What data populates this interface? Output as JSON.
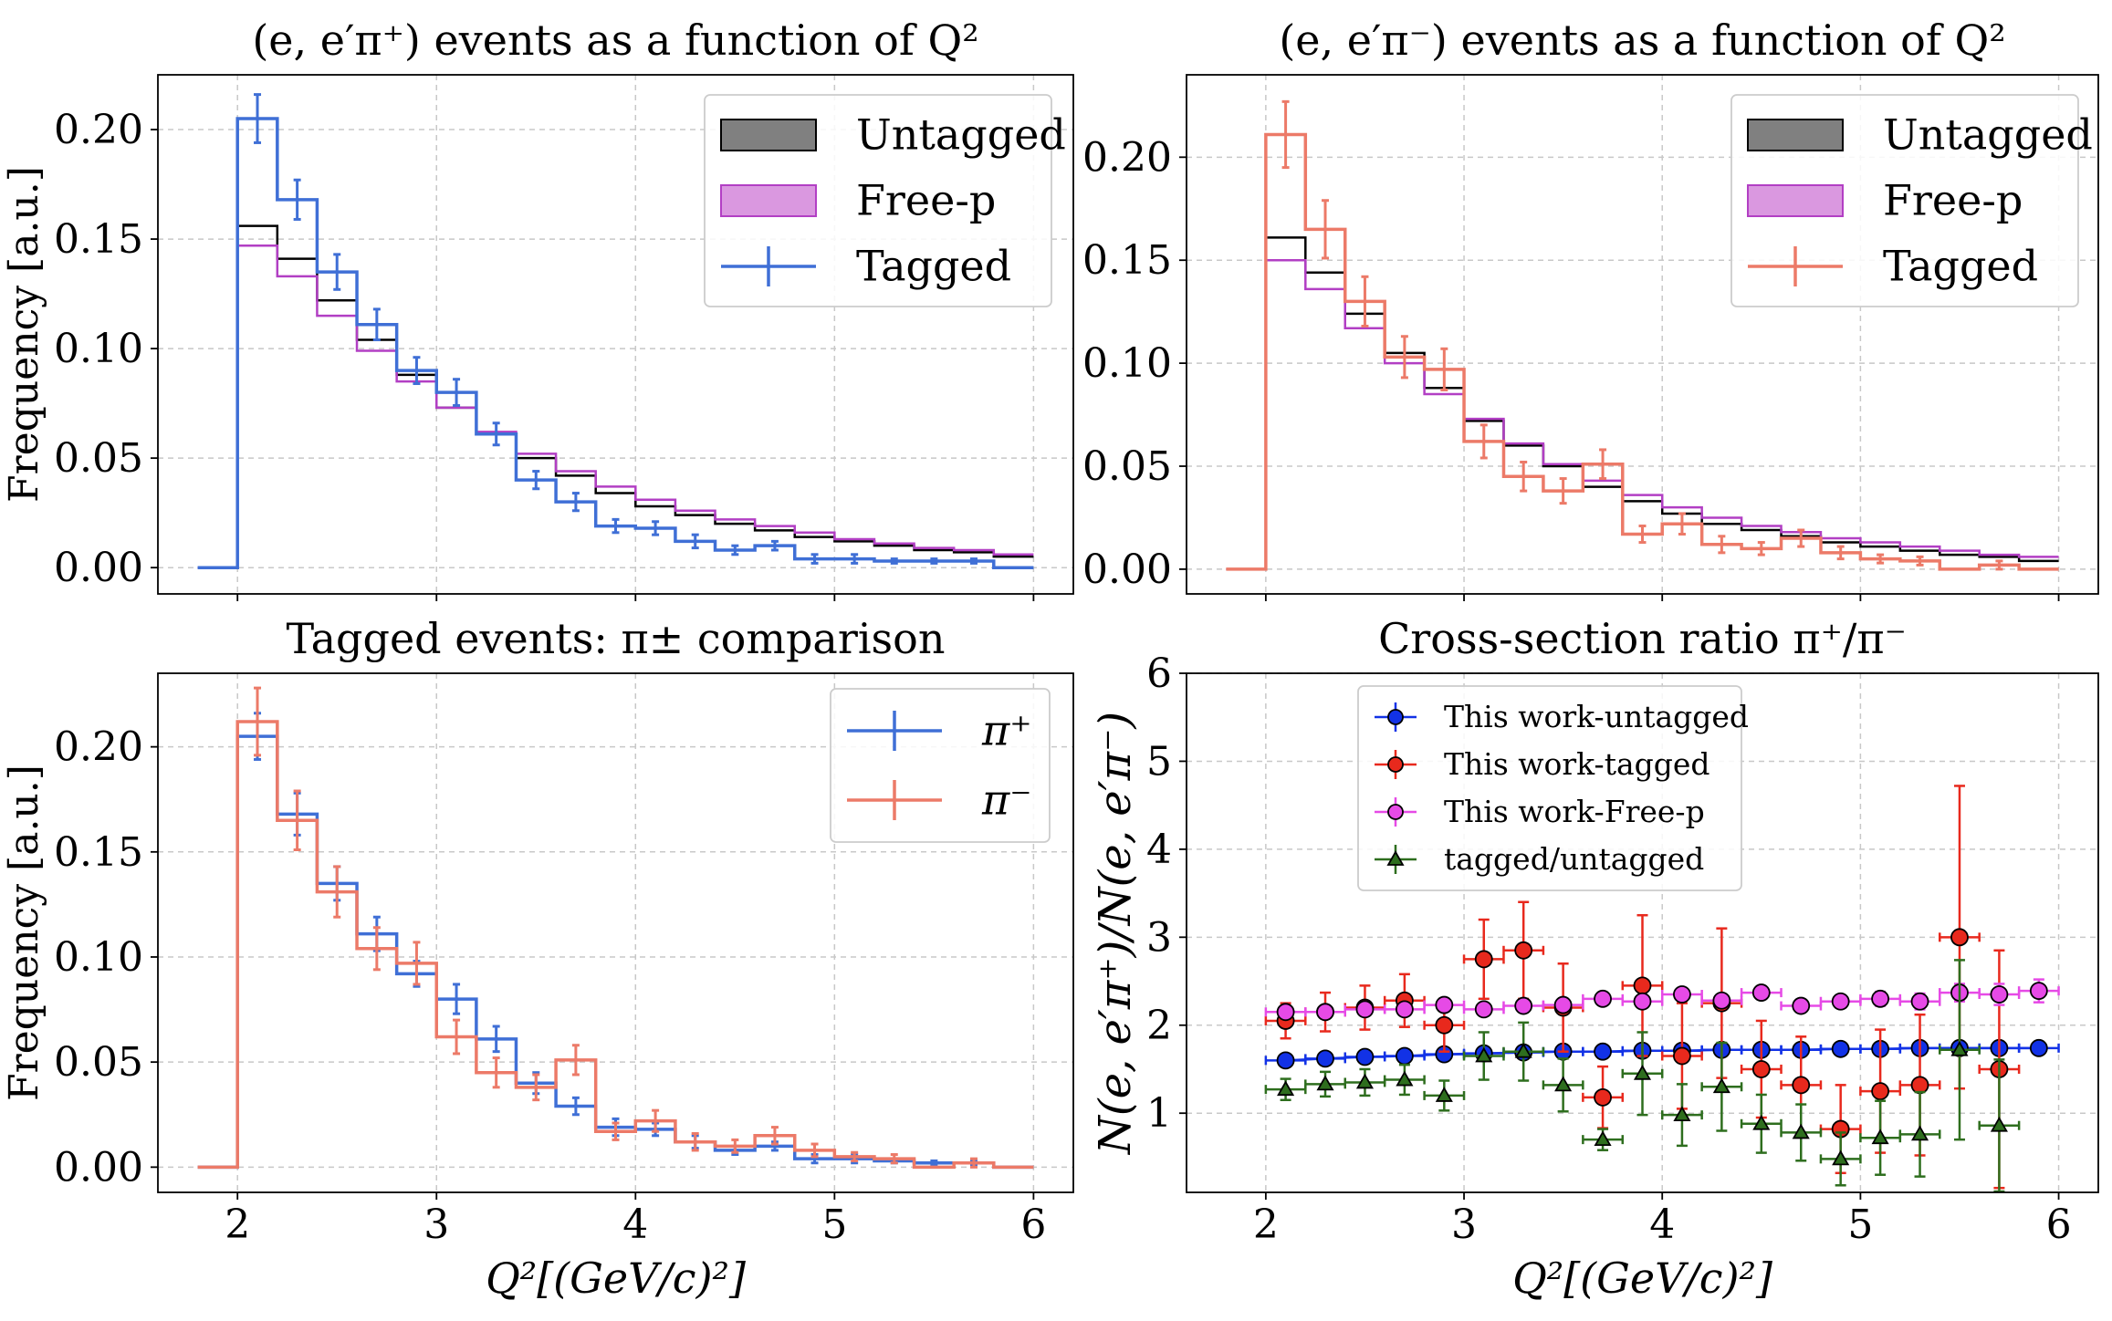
{
  "colors": {
    "untagged_fill": "#808080",
    "untagged_line": "#000000",
    "freep_fill": "#da98e0",
    "freep_line": "#b23fc4",
    "piplus": "#3f6fd6",
    "piminus": "#ec7a68",
    "untagged_marker": "#1232e6",
    "tagged_marker": "#e8291d",
    "freep_marker": "#e64ae6",
    "ratio_marker": "#2e6e1e",
    "grid": "#c8c8c8"
  },
  "chart_data": [
    {
      "id": "top-left",
      "type": "histogram",
      "title": "(e, e′π⁺) events as a function of Q²",
      "xlabel": "",
      "ylabel": "Frequency [a.u.]",
      "xlim": [
        1.6,
        6.2
      ],
      "ylim": [
        -0.012,
        0.225
      ],
      "xticks": [
        2,
        3,
        4,
        5,
        6
      ],
      "xticklabels_visible": false,
      "yticks": [
        0.0,
        0.05,
        0.1,
        0.15,
        0.2
      ],
      "yticklabels": [
        "0.00",
        "0.05",
        "0.10",
        "0.15",
        "0.20"
      ],
      "grid": true,
      "legend": {
        "placement": "top-right",
        "entries": [
          {
            "label": "Untagged",
            "kind": "patch",
            "color": "untagged_fill",
            "edge": "untagged_line"
          },
          {
            "label": "Free-p",
            "kind": "patch",
            "color": "freep_fill",
            "edge": "freep_line"
          },
          {
            "label": "Tagged",
            "kind": "errorbar",
            "color": "piplus"
          }
        ]
      },
      "bin_edges": [
        1.8,
        2.0,
        2.2,
        2.4,
        2.6,
        2.8,
        3.0,
        3.2,
        3.4,
        3.6,
        3.8,
        4.0,
        4.2,
        4.4,
        4.6,
        4.8,
        5.0,
        5.2,
        5.4,
        5.6,
        5.8,
        6.0
      ],
      "series": [
        {
          "name": "Untagged",
          "style": "step",
          "color": "untagged_line",
          "values": [
            0.0,
            0.156,
            0.141,
            0.122,
            0.104,
            0.088,
            0.073,
            0.061,
            0.05,
            0.042,
            0.034,
            0.028,
            0.024,
            0.02,
            0.017,
            0.014,
            0.012,
            0.01,
            0.008,
            0.007,
            0.005
          ]
        },
        {
          "name": "Free-p",
          "style": "step",
          "color": "freep_line",
          "values": [
            0.0,
            0.147,
            0.133,
            0.115,
            0.099,
            0.085,
            0.073,
            0.062,
            0.052,
            0.044,
            0.037,
            0.031,
            0.026,
            0.022,
            0.019,
            0.016,
            0.013,
            0.011,
            0.009,
            0.008,
            0.006
          ]
        },
        {
          "name": "Tagged",
          "style": "step-errorbar",
          "color": "piplus",
          "values": [
            0.0,
            0.205,
            0.168,
            0.135,
            0.111,
            0.09,
            0.08,
            0.061,
            0.04,
            0.03,
            0.019,
            0.018,
            0.012,
            0.008,
            0.01,
            0.004,
            0.004,
            0.003,
            0.003,
            0.003,
            0.0
          ],
          "errors": [
            0.0,
            0.011,
            0.009,
            0.008,
            0.007,
            0.006,
            0.006,
            0.005,
            0.004,
            0.004,
            0.003,
            0.003,
            0.003,
            0.002,
            0.002,
            0.002,
            0.002,
            0.001,
            0.001,
            0.001,
            0.0
          ]
        }
      ]
    },
    {
      "id": "top-right",
      "type": "histogram",
      "title": "(e, e′π⁻) events as a function of Q²",
      "xlabel": "",
      "ylabel": "",
      "xlim": [
        1.6,
        6.2
      ],
      "ylim": [
        -0.012,
        0.24
      ],
      "xticks": [
        2,
        3,
        4,
        5,
        6
      ],
      "xticklabels_visible": false,
      "yticks": [
        0.0,
        0.05,
        0.1,
        0.15,
        0.2
      ],
      "yticklabels": [
        "0.00",
        "0.05",
        "0.10",
        "0.15",
        "0.20"
      ],
      "grid": true,
      "legend": {
        "placement": "top-right",
        "entries": [
          {
            "label": "Untagged",
            "kind": "patch",
            "color": "untagged_fill",
            "edge": "untagged_line"
          },
          {
            "label": "Free-p",
            "kind": "patch",
            "color": "freep_fill",
            "edge": "freep_line"
          },
          {
            "label": "Tagged",
            "kind": "errorbar",
            "color": "piminus"
          }
        ]
      },
      "bin_edges": [
        1.8,
        2.0,
        2.2,
        2.4,
        2.6,
        2.8,
        3.0,
        3.2,
        3.4,
        3.6,
        3.8,
        4.0,
        4.2,
        4.4,
        4.6,
        4.8,
        5.0,
        5.2,
        5.4,
        5.6,
        5.8,
        6.0
      ],
      "series": [
        {
          "name": "Untagged",
          "style": "step",
          "color": "untagged_line",
          "values": [
            0.0,
            0.161,
            0.144,
            0.124,
            0.105,
            0.088,
            0.072,
            0.06,
            0.05,
            0.04,
            0.033,
            0.027,
            0.022,
            0.019,
            0.016,
            0.013,
            0.011,
            0.009,
            0.007,
            0.006,
            0.004
          ]
        },
        {
          "name": "Free-p",
          "style": "step",
          "color": "freep_line",
          "values": [
            0.0,
            0.15,
            0.136,
            0.117,
            0.1,
            0.085,
            0.073,
            0.061,
            0.051,
            0.043,
            0.036,
            0.03,
            0.025,
            0.021,
            0.018,
            0.015,
            0.013,
            0.011,
            0.009,
            0.007,
            0.006
          ]
        },
        {
          "name": "Tagged",
          "style": "step-errorbar",
          "color": "piminus",
          "values": [
            0.0,
            0.211,
            0.165,
            0.13,
            0.103,
            0.097,
            0.062,
            0.045,
            0.038,
            0.051,
            0.017,
            0.022,
            0.012,
            0.01,
            0.015,
            0.008,
            0.005,
            0.004,
            0.0,
            0.002,
            0.0
          ],
          "errors": [
            0.0,
            0.016,
            0.014,
            0.012,
            0.01,
            0.01,
            0.008,
            0.007,
            0.006,
            0.007,
            0.004,
            0.005,
            0.004,
            0.003,
            0.004,
            0.003,
            0.002,
            0.002,
            0.0,
            0.002,
            0.0
          ]
        }
      ]
    },
    {
      "id": "bottom-left",
      "type": "histogram",
      "title": "Tagged events: π± comparison",
      "xlabel": "Q²[(GeV/c)²]",
      "ylabel": "Frequency [a.u.]",
      "xlim": [
        1.6,
        6.2
      ],
      "ylim": [
        -0.012,
        0.235
      ],
      "xticks": [
        2,
        3,
        4,
        5,
        6
      ],
      "xticklabels": [
        "2",
        "3",
        "4",
        "5",
        "6"
      ],
      "yticks": [
        0.0,
        0.05,
        0.1,
        0.15,
        0.2
      ],
      "yticklabels": [
        "0.00",
        "0.05",
        "0.10",
        "0.15",
        "0.20"
      ],
      "grid": true,
      "legend": {
        "placement": "top-right",
        "entries": [
          {
            "label": "π⁺",
            "kind": "errorbar",
            "color": "piplus"
          },
          {
            "label": "π⁻",
            "kind": "errorbar",
            "color": "piminus"
          }
        ]
      },
      "bin_edges": [
        1.8,
        2.0,
        2.2,
        2.4,
        2.6,
        2.8,
        3.0,
        3.2,
        3.4,
        3.6,
        3.8,
        4.0,
        4.2,
        4.4,
        4.6,
        4.8,
        5.0,
        5.2,
        5.4,
        5.6,
        5.8,
        6.0
      ],
      "series": [
        {
          "name": "π⁺",
          "style": "step-errorbar",
          "color": "piplus",
          "values": [
            0.0,
            0.205,
            0.168,
            0.135,
            0.111,
            0.092,
            0.08,
            0.061,
            0.04,
            0.029,
            0.019,
            0.018,
            0.012,
            0.008,
            0.01,
            0.004,
            0.004,
            0.003,
            0.002,
            0.002,
            0.0
          ],
          "errors": [
            0.0,
            0.011,
            0.01,
            0.008,
            0.008,
            0.006,
            0.007,
            0.006,
            0.005,
            0.004,
            0.004,
            0.003,
            0.003,
            0.002,
            0.002,
            0.002,
            0.002,
            0.001,
            0.001,
            0.001,
            0.0
          ]
        },
        {
          "name": "π⁻",
          "style": "step-errorbar",
          "color": "piminus",
          "values": [
            0.0,
            0.212,
            0.165,
            0.131,
            0.104,
            0.097,
            0.062,
            0.045,
            0.038,
            0.051,
            0.017,
            0.022,
            0.012,
            0.01,
            0.015,
            0.008,
            0.005,
            0.004,
            0.0,
            0.002,
            0.0
          ],
          "errors": [
            0.0,
            0.016,
            0.014,
            0.012,
            0.01,
            0.01,
            0.008,
            0.007,
            0.006,
            0.007,
            0.004,
            0.005,
            0.004,
            0.003,
            0.004,
            0.003,
            0.002,
            0.002,
            0.0,
            0.002,
            0.0
          ]
        }
      ]
    },
    {
      "id": "bottom-right",
      "type": "scatter",
      "title": "Cross-section ratio π⁺/π⁻",
      "xlabel": "Q²[(GeV/c)²]",
      "ylabel": "N(e, e′π⁺)/N(e, e′π⁻)",
      "xlim": [
        1.6,
        6.2
      ],
      "ylim": [
        0.1,
        6.0
      ],
      "xticks": [
        2,
        3,
        4,
        5,
        6
      ],
      "xticklabels": [
        "2",
        "3",
        "4",
        "5",
        "6"
      ],
      "yticks": [
        1,
        2,
        3,
        4,
        5,
        6
      ],
      "yticklabels": [
        "1",
        "2",
        "3",
        "4",
        "5",
        "6"
      ],
      "grid": true,
      "legend": {
        "placement": "top-left",
        "entries": [
          {
            "label": "This work-untagged",
            "kind": "marker",
            "marker": "circle",
            "color": "untagged_marker"
          },
          {
            "label": "This work-tagged",
            "kind": "marker",
            "marker": "circle",
            "color": "tagged_marker"
          },
          {
            "label": "This work-Free-p",
            "kind": "marker",
            "marker": "circle",
            "color": "freep_marker"
          },
          {
            "label": "tagged/untagged",
            "kind": "marker",
            "marker": "triangle",
            "color": "ratio_marker"
          }
        ]
      },
      "x": [
        2.1,
        2.3,
        2.5,
        2.7,
        2.9,
        3.1,
        3.3,
        3.5,
        3.7,
        3.9,
        4.1,
        4.3,
        4.5,
        4.7,
        4.9,
        5.1,
        5.3,
        5.5,
        5.7,
        5.9
      ],
      "xerr": 0.1,
      "series": [
        {
          "name": "This work-untagged",
          "marker": "circle",
          "color": "untagged_marker",
          "connected": true,
          "values": [
            1.6,
            1.62,
            1.64,
            1.65,
            1.67,
            1.68,
            1.69,
            1.7,
            1.7,
            1.71,
            1.71,
            1.72,
            1.72,
            1.72,
            1.73,
            1.73,
            1.74,
            1.74,
            1.74,
            1.74
          ],
          "errors": [
            0.03,
            0.03,
            0.03,
            0.03,
            0.03,
            0.03,
            0.03,
            0.03,
            0.03,
            0.03,
            0.03,
            0.03,
            0.03,
            0.03,
            0.03,
            0.04,
            0.04,
            0.04,
            0.04,
            0.04
          ]
        },
        {
          "name": "This work-tagged",
          "marker": "circle",
          "color": "tagged_marker",
          "connected": false,
          "x": [
            2.1,
            2.3,
            2.5,
            2.7,
            2.9,
            3.1,
            3.3,
            3.5,
            3.7,
            3.9,
            4.1,
            4.3,
            4.5,
            4.7,
            4.9,
            5.1,
            5.3,
            5.5,
            5.7
          ],
          "values": [
            2.05,
            2.15,
            2.2,
            2.28,
            2.0,
            2.75,
            2.85,
            2.2,
            1.18,
            2.45,
            1.65,
            2.25,
            1.5,
            1.32,
            0.82,
            1.25,
            1.32,
            3.0,
            1.5
          ],
          "errors": [
            0.2,
            0.22,
            0.25,
            0.3,
            0.3,
            0.45,
            0.55,
            0.5,
            0.35,
            0.8,
            0.6,
            0.85,
            0.55,
            0.55,
            0.5,
            0.7,
            0.8,
            1.72,
            1.35
          ]
        },
        {
          "name": "This work-Free-p",
          "marker": "circle",
          "color": "freep_marker",
          "connected": false,
          "values": [
            2.15,
            2.15,
            2.18,
            2.18,
            2.23,
            2.18,
            2.22,
            2.23,
            2.3,
            2.27,
            2.35,
            2.28,
            2.37,
            2.22,
            2.27,
            2.3,
            2.27,
            2.37,
            2.35,
            2.39
          ],
          "errors": [
            0.05,
            0.05,
            0.05,
            0.05,
            0.05,
            0.05,
            0.05,
            0.05,
            0.06,
            0.06,
            0.06,
            0.06,
            0.07,
            0.07,
            0.07,
            0.08,
            0.09,
            0.1,
            0.12,
            0.13
          ]
        },
        {
          "name": "tagged/untagged",
          "marker": "triangle",
          "color": "ratio_marker",
          "connected": false,
          "x": [
            2.1,
            2.3,
            2.5,
            2.7,
            2.9,
            3.1,
            3.3,
            3.5,
            3.7,
            3.9,
            4.1,
            4.3,
            4.5,
            4.7,
            4.9,
            5.1,
            5.3,
            5.5,
            5.7
          ],
          "values": [
            1.27,
            1.33,
            1.35,
            1.38,
            1.2,
            1.65,
            1.7,
            1.32,
            0.7,
            1.45,
            0.98,
            1.3,
            0.88,
            0.78,
            0.48,
            0.72,
            0.76,
            1.72,
            0.86
          ],
          "errors": [
            0.12,
            0.14,
            0.15,
            0.17,
            0.17,
            0.27,
            0.33,
            0.3,
            0.12,
            0.47,
            0.35,
            0.5,
            0.33,
            0.32,
            0.3,
            0.42,
            0.48,
            1.02,
            0.75
          ]
        }
      ]
    }
  ]
}
